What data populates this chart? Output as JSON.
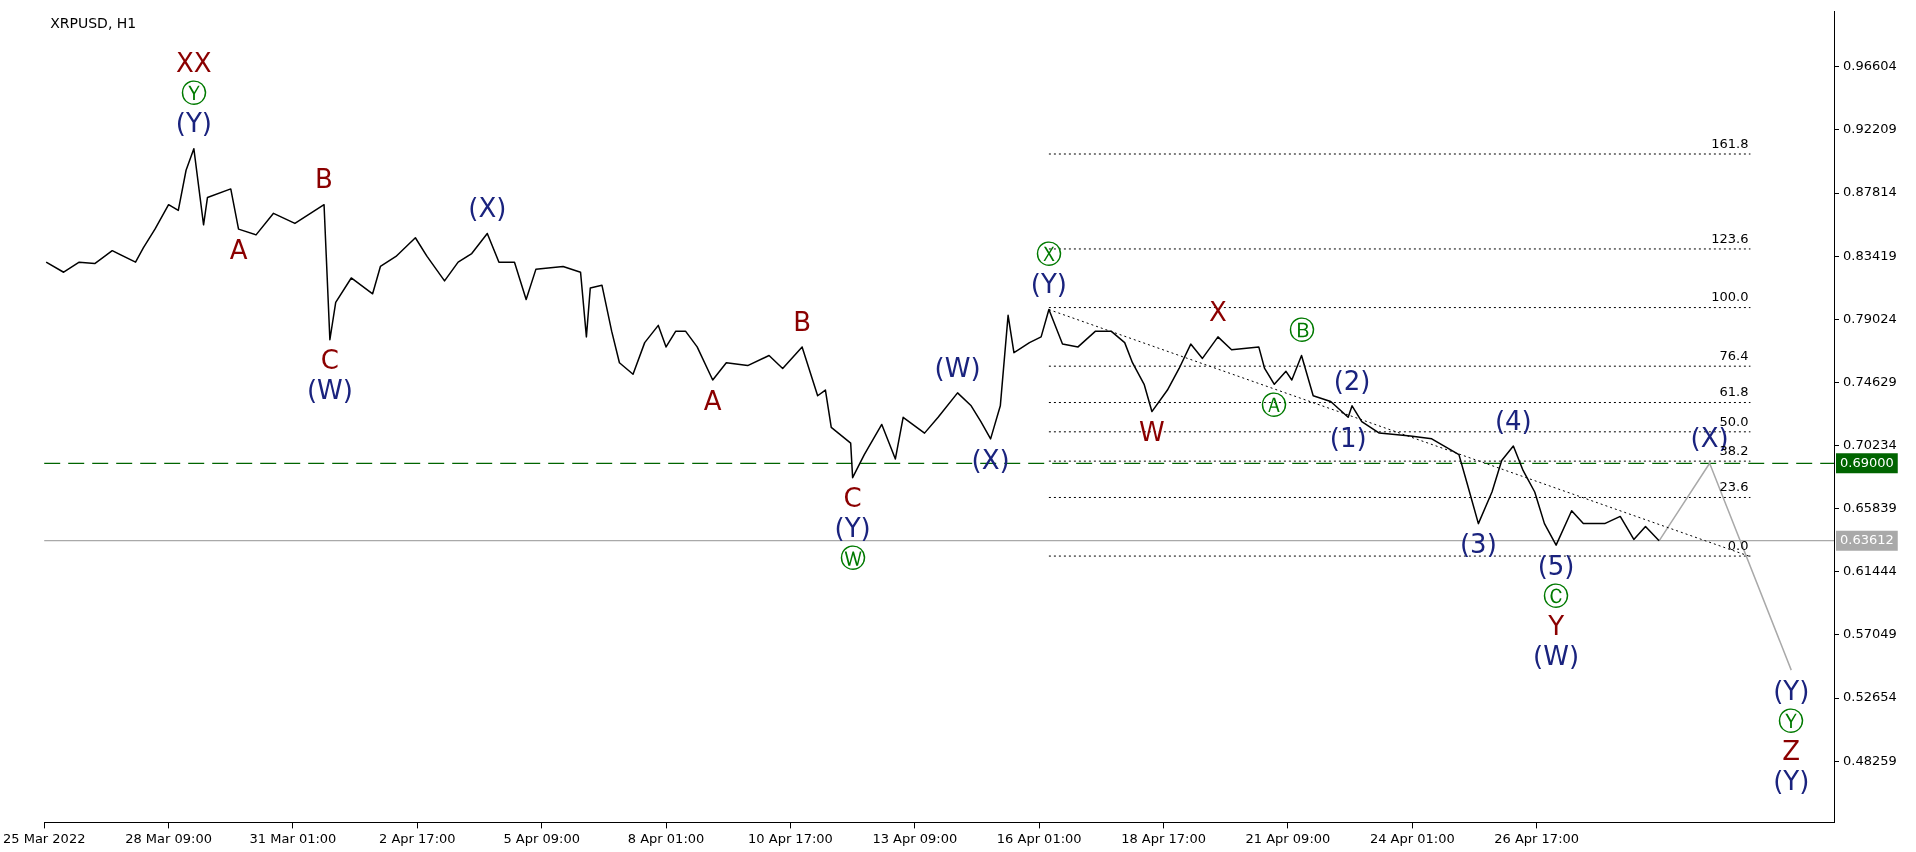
{
  "chart_data": {
    "type": "line",
    "title": "XRPUSD, H1",
    "marker": "none",
    "grid": false,
    "legend": false,
    "xlim": [
      "2022-03-25T17:00",
      "2022-05-03T02:00"
    ],
    "ylim": [
      0.44,
      1.0043
    ],
    "xticks": [
      {
        "value": "2022-03-25T17:00",
        "label": "25 Mar 2022"
      },
      {
        "value": "2022-03-28T09:00",
        "label": "28 Mar 09:00"
      },
      {
        "value": "2022-03-31T01:00",
        "label": "31 Mar 01:00"
      },
      {
        "value": "2022-04-02T17:00",
        "label": "2 Apr 17:00"
      },
      {
        "value": "2022-04-05T09:00",
        "label": "5 Apr 09:00"
      },
      {
        "value": "2022-04-08T01:00",
        "label": "8 Apr 01:00"
      },
      {
        "value": "2022-04-10T17:00",
        "label": "10 Apr 17:00"
      },
      {
        "value": "2022-04-13T09:00",
        "label": "13 Apr 09:00"
      },
      {
        "value": "2022-04-16T01:00",
        "label": "16 Apr 01:00"
      },
      {
        "value": "2022-04-18T17:00",
        "label": "18 Apr 17:00"
      },
      {
        "value": "2022-04-21T09:00",
        "label": "21 Apr 09:00"
      },
      {
        "value": "2022-04-24T01:00",
        "label": "24 Apr 01:00"
      },
      {
        "value": "2022-04-26T17:00",
        "label": "26 Apr 17:00"
      }
    ],
    "yticks": [
      0.96604,
      0.92209,
      0.87814,
      0.83419,
      0.79024,
      0.74629,
      0.70234,
      0.65839,
      0.61444,
      0.57049,
      0.52654,
      0.48259
    ],
    "series": [
      {
        "color": "#000000",
        "line_style": "solid",
        "x": [
          "2022-03-25T18:00",
          "2022-03-26T03:00",
          "2022-03-26T11:00",
          "2022-03-26T19:00",
          "2022-03-27T04:00",
          "2022-03-27T16:00",
          "2022-03-27T20:00",
          "2022-03-28T02:00",
          "2022-03-28T09:00",
          "2022-03-28T14:00",
          "2022-03-28T18:00",
          "2022-03-28T22:00",
          "2022-03-29T03:00",
          "2022-03-29T05:00",
          "2022-03-29T17:00",
          "2022-03-29T21:00",
          "2022-03-30T06:00",
          "2022-03-30T15:00",
          "2022-03-31T02:00",
          "2022-03-31T17:00",
          "2022-03-31T20:00",
          "2022-03-31T23:00",
          "2022-04-01T07:00",
          "2022-04-01T18:00",
          "2022-04-01T22:00",
          "2022-04-02T06:00",
          "2022-04-02T16:00",
          "2022-04-02T22:00",
          "2022-04-03T07:00",
          "2022-04-03T14:00",
          "2022-04-03T21:00",
          "2022-04-04T05:00",
          "2022-04-04T11:00",
          "2022-04-04T19:00",
          "2022-04-05T01:00",
          "2022-04-05T06:00",
          "2022-04-05T20:00",
          "2022-04-06T05:00",
          "2022-04-06T08:00",
          "2022-04-06T10:00",
          "2022-04-06T16:00",
          "2022-04-06T21:00",
          "2022-04-07T01:00",
          "2022-04-07T08:00",
          "2022-04-07T14:00",
          "2022-04-07T21:00",
          "2022-04-08T01:00",
          "2022-04-08T06:00",
          "2022-04-08T11:00",
          "2022-04-08T17:00",
          "2022-04-09T01:00",
          "2022-04-09T08:00",
          "2022-04-09T19:00",
          "2022-04-10T06:00",
          "2022-04-10T13:00",
          "2022-04-10T23:00",
          "2022-04-11T07:00",
          "2022-04-11T11:00",
          "2022-04-11T14:00",
          "2022-04-12T00:00",
          "2022-04-12T01:00",
          "2022-04-12T07:00",
          "2022-04-12T16:00",
          "2022-04-12T23:00",
          "2022-04-13T03:00",
          "2022-04-13T14:00",
          "2022-04-13T21:00",
          "2022-04-14T07:00",
          "2022-04-14T14:00",
          "2022-04-14T19:00",
          "2022-04-15T00:00",
          "2022-04-15T05:00",
          "2022-04-15T09:00",
          "2022-04-15T12:00",
          "2022-04-15T20:00",
          "2022-04-16T02:00",
          "2022-04-16T06:00",
          "2022-04-16T13:00",
          "2022-04-16T21:00",
          "2022-04-17T06:00",
          "2022-04-17T14:00",
          "2022-04-17T21:00",
          "2022-04-18T01:00",
          "2022-04-18T07:00",
          "2022-04-18T11:00",
          "2022-04-18T19:00",
          "2022-04-19T01:00",
          "2022-04-19T07:00",
          "2022-04-19T13:00",
          "2022-04-19T21:00",
          "2022-04-20T04:00",
          "2022-04-20T18:00",
          "2022-04-20T21:00",
          "2022-04-21T02:00",
          "2022-04-21T08:00",
          "2022-04-21T11:00",
          "2022-04-21T16:00",
          "2022-04-21T22:00",
          "2022-04-22T07:00",
          "2022-04-22T16:00",
          "2022-04-22T18:00",
          "2022-04-22T23:00",
          "2022-04-23T08:00",
          "2022-04-24T00:00",
          "2022-04-24T11:00",
          "2022-04-25T01:00",
          "2022-04-25T05:00",
          "2022-04-25T11:00",
          "2022-04-25T18:00",
          "2022-04-25T23:00",
          "2022-04-26T05:00",
          "2022-04-26T10:00",
          "2022-04-26T16:00",
          "2022-04-26T21:00",
          "2022-04-27T03:00",
          "2022-04-27T11:00",
          "2022-04-27T17:00",
          "2022-04-28T04:00",
          "2022-04-28T12:00",
          "2022-04-28T19:00",
          "2022-04-29T01:00",
          "2022-04-29T08:00"
        ],
        "values": [
          0.83,
          0.823,
          0.83,
          0.829,
          0.838,
          0.83,
          0.84,
          0.853,
          0.87,
          0.866,
          0.894,
          0.909,
          0.856,
          0.875,
          0.881,
          0.853,
          0.849,
          0.864,
          0.857,
          0.87,
          0.776,
          0.802,
          0.819,
          0.808,
          0.827,
          0.834,
          0.847,
          0.834,
          0.817,
          0.83,
          0.836,
          0.85,
          0.83,
          0.83,
          0.804,
          0.825,
          0.827,
          0.823,
          0.778,
          0.812,
          0.814,
          0.782,
          0.76,
          0.752,
          0.774,
          0.786,
          0.771,
          0.782,
          0.782,
          0.771,
          0.748,
          0.76,
          0.758,
          0.765,
          0.756,
          0.771,
          0.737,
          0.741,
          0.715,
          0.704,
          0.68,
          0.696,
          0.717,
          0.693,
          0.722,
          0.711,
          0.722,
          0.739,
          0.73,
          0.719,
          0.707,
          0.73,
          0.793,
          0.767,
          0.774,
          0.778,
          0.797,
          0.773,
          0.771,
          0.782,
          0.782,
          0.774,
          0.76,
          0.745,
          0.726,
          0.741,
          0.756,
          0.773,
          0.763,
          0.778,
          0.769,
          0.771,
          0.756,
          0.745,
          0.754,
          0.748,
          0.765,
          0.737,
          0.733,
          0.722,
          0.73,
          0.719,
          0.711,
          0.709,
          0.707,
          0.696,
          0.677,
          0.648,
          0.67,
          0.692,
          0.702,
          0.685,
          0.67,
          0.648,
          0.633,
          0.657,
          0.648,
          0.648,
          0.653,
          0.637,
          0.646,
          0.636
        ]
      },
      {
        "color": "#000000",
        "line_style": "dotted",
        "x": [
          "2022-04-16T06:00",
          "2022-05-01T07:00"
        ],
        "values": [
          0.797,
          0.625
        ]
      },
      {
        "color": "#a9a9a9",
        "line_style": "solid",
        "x": [
          "2022-04-29T08:00",
          "2022-04-30T10:00",
          "2022-05-02T04:00"
        ],
        "values": [
          0.636,
          0.69,
          0.546
        ]
      },
      {
        "name": "161.8",
        "color": "#000000",
        "line_style": "dotted",
        "x": [
          "2022-04-16T06:00",
          "2022-05-01T07:00"
        ],
        "values": [
          0.9053,
          0.9053
        ]
      },
      {
        "name": "123.6",
        "color": "#000000",
        "line_style": "dotted",
        "x": [
          "2022-04-16T06:00",
          "2022-05-01T07:00"
        ],
        "values": [
          0.8392,
          0.8392
        ]
      },
      {
        "name": "100.0",
        "color": "#000000",
        "line_style": "dotted",
        "x": [
          "2022-04-16T06:00",
          "2022-05-01T07:00"
        ],
        "values": [
          0.7984,
          0.7984
        ]
      },
      {
        "name": "76.4",
        "color": "#000000",
        "line_style": "dotted",
        "x": [
          "2022-04-16T06:00",
          "2022-05-01T07:00"
        ],
        "values": [
          0.7576,
          0.7576
        ]
      },
      {
        "name": "61.8",
        "color": "#000000",
        "line_style": "dotted",
        "x": [
          "2022-04-16T06:00",
          "2022-05-01T07:00"
        ],
        "values": [
          0.7323,
          0.7323
        ]
      },
      {
        "name": "50.0",
        "color": "#000000",
        "line_style": "dotted",
        "x": [
          "2022-04-16T06:00",
          "2022-05-01T07:00"
        ],
        "values": [
          0.7119,
          0.7119
        ]
      },
      {
        "name": "38.2",
        "color": "#000000",
        "line_style": "dotted",
        "x": [
          "2022-04-16T06:00",
          "2022-05-01T07:00"
        ],
        "values": [
          0.6915,
          0.6915
        ]
      },
      {
        "name": "23.6",
        "color": "#000000",
        "line_style": "dotted",
        "x": [
          "2022-04-16T06:00",
          "2022-05-01T07:00"
        ],
        "values": [
          0.6662,
          0.6662
        ]
      },
      {
        "name": "0.0",
        "color": "#000000",
        "line_style": "dotted",
        "x": [
          "2022-04-16T06:00",
          "2022-05-01T07:00"
        ],
        "values": [
          0.6254,
          0.6254
        ]
      }
    ],
    "ref_lines": [
      {
        "axis": "y",
        "value": 0.69,
        "label": "0.69000",
        "color": "#006400",
        "line_style": "dashed"
      },
      {
        "axis": "y",
        "value": 0.63612,
        "label": "0.63612",
        "color": "#a9a9a9",
        "line_style": "solid"
      }
    ],
    "annotations": [
      {
        "text": "XX\nⓎ\n(Y)",
        "x": "2022-03-28T22:00",
        "y": 0.909
      },
      {
        "text": "A",
        "x": "2022-03-29T21:00",
        "y": 0.853
      },
      {
        "text": "B",
        "x": "2022-03-31T17:00",
        "y": 0.87
      },
      {
        "text": "C\n(W)",
        "x": "2022-03-31T20:00",
        "y": 0.776
      },
      {
        "text": "(X)",
        "x": "2022-04-04T05:00",
        "y": 0.85
      },
      {
        "text": "A",
        "x": "2022-04-09T01:00",
        "y": 0.748
      },
      {
        "text": "B",
        "x": "2022-04-10T23:00",
        "y": 0.771
      },
      {
        "text": "C\n(Y)\nⓌ",
        "x": "2022-04-12T01:00",
        "y": 0.68
      },
      {
        "text": "(W)",
        "x": "2022-04-14T07:00",
        "y": 0.739
      },
      {
        "text": "(X)",
        "x": "2022-04-15T00:00",
        "y": 0.707
      },
      {
        "text": "Ⓧ\n(Y)",
        "x": "2022-04-16T06:00",
        "y": 0.797
      },
      {
        "text": "W",
        "x": "2022-04-18T11:00",
        "y": 0.726
      },
      {
        "text": "X",
        "x": "2022-04-19T21:00",
        "y": 0.778
      },
      {
        "text": "Ⓐ",
        "x": "2022-04-21T02:00",
        "y": 0.745
      },
      {
        "text": "Ⓑ",
        "x": "2022-04-21T16:00",
        "y": 0.765
      },
      {
        "text": "(1)",
        "x": "2022-04-22T16:00",
        "y": 0.722
      },
      {
        "text": "(2)",
        "x": "2022-04-22T18:00",
        "y": 0.73
      },
      {
        "text": "(3)",
        "x": "2022-04-25T11:00",
        "y": 0.648
      },
      {
        "text": "(4)",
        "x": "2022-04-26T05:00",
        "y": 0.702
      },
      {
        "text": "(5)\nⒸ\nY\n(W)",
        "x": "2022-04-27T03:00",
        "y": 0.633
      },
      {
        "text": "(X)",
        "x": "2022-04-30T10:00",
        "y": 0.69
      },
      {
        "text": "(Y)\nⓎ\nZ\n(Y)",
        "x": "2022-05-02T04:00",
        "y": 0.546
      }
    ]
  }
}
